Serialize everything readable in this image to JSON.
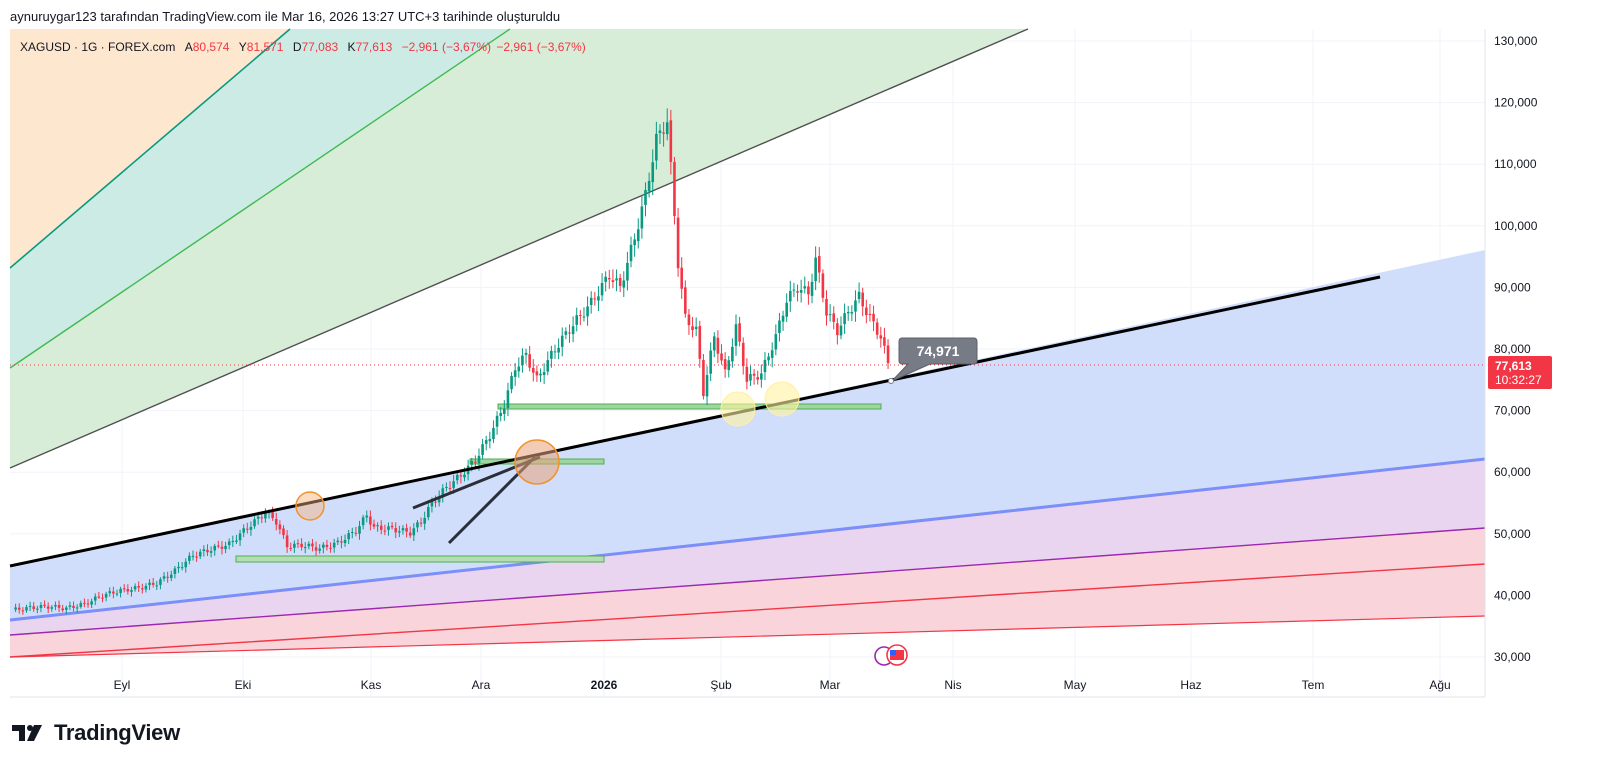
{
  "header": {
    "caption": "aynuruygar123 tarafından TradingView.com ile Mar 16, 2026 13:27 UTC+3 tarihinde oluşturuldu"
  },
  "symbol": {
    "title": "XAGUSD · 1G · FOREX.com",
    "open_label": "A",
    "open": "80,574",
    "high_label": "Y",
    "high": "81,571",
    "low_label": "D",
    "low": "77,083",
    "close_label": "K",
    "close": "77,613",
    "change": "−2,961 (−3,67%)",
    "change2": "−2,961 (−3,67%)"
  },
  "price_axis": {
    "ticks": [
      "130,000",
      "120,000",
      "110,000",
      "100,000",
      "90,000",
      "80,000",
      "70,000",
      "60,000",
      "50,000",
      "40,000",
      "30,000"
    ],
    "tick_values": [
      130,
      120,
      110,
      100,
      90,
      80,
      70,
      60,
      50,
      40,
      30
    ],
    "last_price": "77,613",
    "countdown": "10:32:27",
    "last_value": 77.613
  },
  "time_axis": {
    "labels": [
      "Eyl",
      "Eki",
      "Kas",
      "Ara",
      "2026",
      "Şub",
      "Mar",
      "Nis",
      "May",
      "Haz",
      "Tem",
      "Ağu"
    ]
  },
  "callout": {
    "text": "74,971"
  },
  "brand": {
    "name": "TradingView"
  },
  "colors": {
    "up": "#089981",
    "down": "#f23645",
    "trendline": "#000000",
    "accent_blue": "#7b8ff7"
  },
  "chart_data": {
    "type": "candlestick",
    "title": "XAGUSD · 1G · FOREX.com",
    "ylim": [
      28,
      133
    ],
    "y_ticks": [
      130,
      120,
      110,
      100,
      90,
      80,
      70,
      60,
      50,
      40,
      30
    ],
    "x_tick_labels": [
      "Eyl",
      "Eki",
      "Kas",
      "Ara",
      "2026",
      "Şub",
      "Mar",
      "Nis",
      "May",
      "Haz",
      "Tem",
      "Ağu"
    ],
    "series": [
      {
        "name": "XAGUSD",
        "close_points": [
          [
            0,
            37.6
          ],
          [
            5,
            38.0
          ],
          [
            10,
            38.2
          ],
          [
            15,
            37.9
          ],
          [
            20,
            38.6
          ],
          [
            25,
            40.0
          ],
          [
            30,
            40.8
          ],
          [
            35,
            41.2
          ],
          [
            40,
            42.0
          ],
          [
            45,
            44.0
          ],
          [
            50,
            46.5
          ],
          [
            55,
            47.5
          ],
          [
            60,
            48.3
          ],
          [
            65,
            51.0
          ],
          [
            70,
            53.5
          ],
          [
            73,
            52.0
          ],
          [
            76,
            48.0
          ],
          [
            80,
            48.2
          ],
          [
            85,
            47.6
          ],
          [
            90,
            48.5
          ],
          [
            95,
            50.5
          ],
          [
            98,
            53.0
          ],
          [
            100,
            51.0
          ],
          [
            105,
            50.8
          ],
          [
            110,
            50.2
          ],
          [
            113,
            52.0
          ],
          [
            116,
            55.0
          ],
          [
            120,
            57.5
          ],
          [
            124,
            59.5
          ],
          [
            128,
            62.0
          ],
          [
            132,
            66.0
          ],
          [
            136,
            71.0
          ],
          [
            139,
            77.0
          ],
          [
            142,
            79.0
          ],
          [
            145,
            75.0
          ],
          [
            150,
            80.0
          ],
          [
            155,
            84.0
          ],
          [
            160,
            87.5
          ],
          [
            165,
            92.0
          ],
          [
            168,
            90.0
          ],
          [
            172,
            98.0
          ],
          [
            175,
            105.0
          ],
          [
            178,
            114.0
          ],
          [
            181,
            117.0
          ],
          [
            184,
            94.0
          ],
          [
            186,
            85.0
          ],
          [
            189,
            83.0
          ],
          [
            191,
            73.0
          ],
          [
            194,
            82.0
          ],
          [
            197,
            76.0
          ],
          [
            200,
            83.5
          ],
          [
            203,
            75.0
          ],
          [
            207,
            76.0
          ],
          [
            211,
            82.0
          ],
          [
            214,
            88.0
          ],
          [
            217,
            90.0
          ],
          [
            220,
            89.0
          ],
          [
            222,
            94.5
          ],
          [
            225,
            86.0
          ],
          [
            228,
            83.0
          ],
          [
            231,
            86.0
          ],
          [
            234,
            88.5
          ],
          [
            237,
            85.0
          ],
          [
            240,
            82.0
          ],
          [
            242,
            77.6
          ]
        ]
      }
    ],
    "annotations": {
      "horizontal_zones": [
        {
          "y": 70.7,
          "label": ""
        },
        {
          "y": 62.0,
          "label": ""
        },
        {
          "y": 46.0,
          "label": ""
        }
      ],
      "callout_value": 74.971
    }
  }
}
